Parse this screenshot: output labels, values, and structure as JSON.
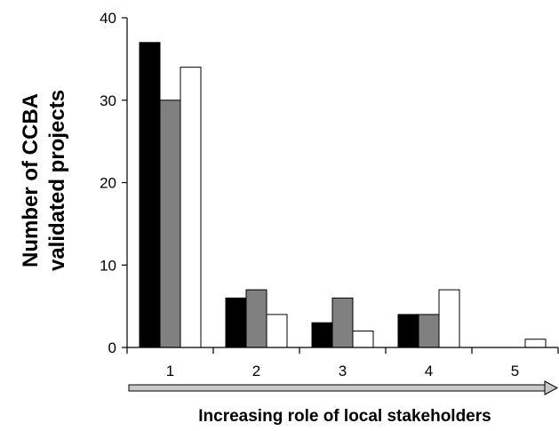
{
  "chart_data": {
    "type": "bar",
    "categories": [
      "1",
      "2",
      "3",
      "4",
      "5"
    ],
    "series": [
      {
        "values": [
          37,
          6,
          3,
          4,
          0
        ],
        "color": "#000000"
      },
      {
        "values": [
          30,
          7,
          6,
          4,
          0
        ],
        "color": "#808080"
      },
      {
        "values": [
          34,
          4,
          2,
          7,
          1
        ],
        "color": "#ffffff"
      }
    ],
    "y_ticks": [
      "0",
      "10",
      "20",
      "30",
      "40"
    ],
    "ylim": [
      0,
      40
    ],
    "ylabel_line1": "Number of CCBA",
    "ylabel_line2": "validated projects",
    "xlabel": "Increasing role of local stakeholders",
    "arrow_color": "#c8c8c8",
    "grid": false,
    "legend": "none"
  }
}
